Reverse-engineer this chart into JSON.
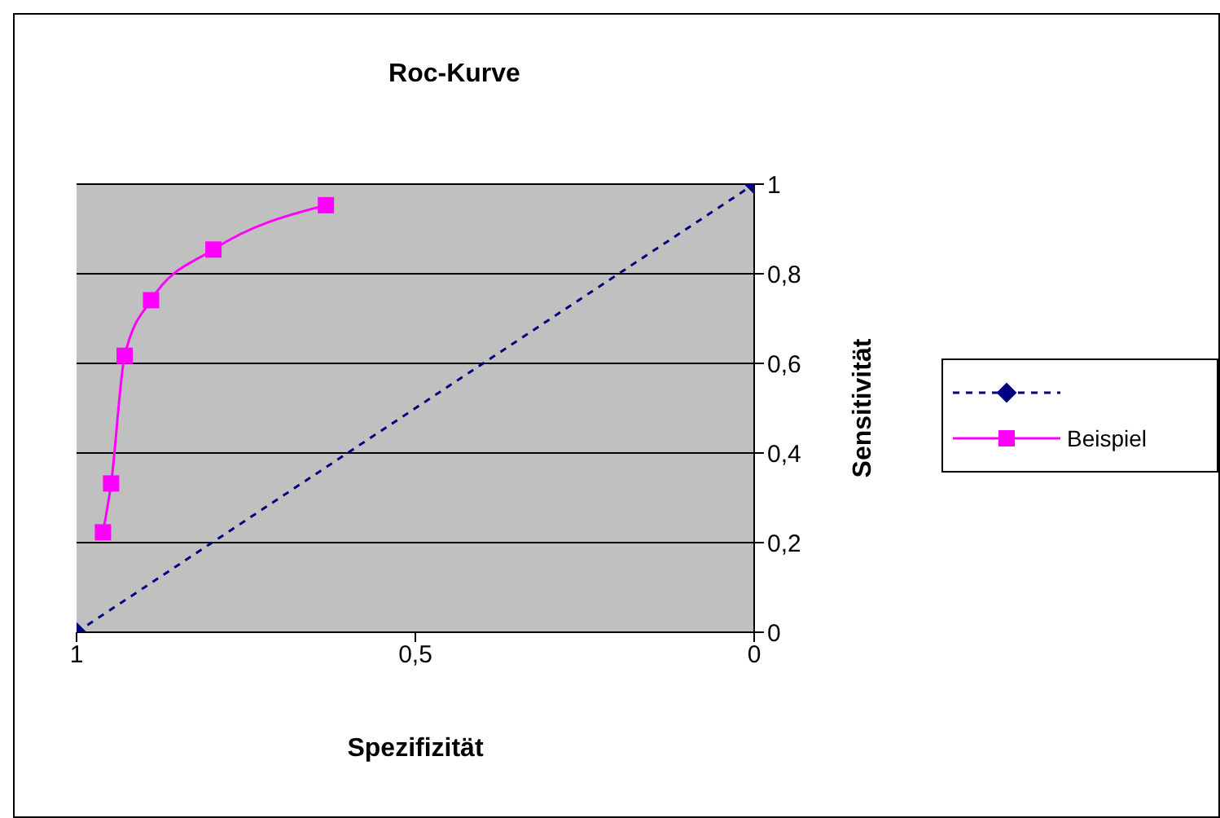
{
  "chart_data": {
    "type": "line",
    "title": "Roc-Kurve",
    "xlabel": "Spezifizität",
    "ylabel": "Sensitivität",
    "xlim": [
      1,
      0
    ],
    "xticks": [
      1,
      {
        "value": 0.5,
        "label": "0,5"
      },
      0
    ],
    "ylim": [
      0,
      1
    ],
    "yticks": [
      0,
      {
        "value": 0.2,
        "label": "0,2"
      },
      {
        "value": 0.4,
        "label": "0,4"
      },
      {
        "value": 0.6,
        "label": "0,6"
      },
      {
        "value": 0.8,
        "label": "0,8"
      },
      1
    ],
    "grid": "y",
    "legend": "right",
    "series": [
      {
        "color": "#000080",
        "x": [
          1,
          0
        ],
        "values": [
          0,
          1
        ],
        "marker": "diamond",
        "line_style": "dashed"
      },
      {
        "name": "Beispiel",
        "color": "#ff00ff",
        "x": [
          0.961,
          0.949,
          0.929,
          0.89,
          0.798,
          0.632
        ],
        "values": [
          0.223,
          0.332,
          0.617,
          0.741,
          0.854,
          0.953
        ],
        "marker": "square",
        "line_style": "solid"
      }
    ]
  }
}
